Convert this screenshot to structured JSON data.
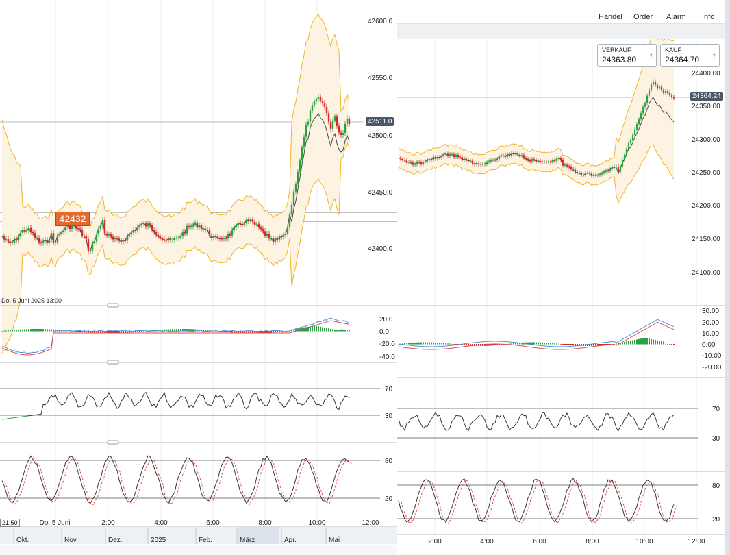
{
  "colors": {
    "up": "#2ea043",
    "down": "#d42a2a",
    "band": "#f0b429",
    "band_fill": "#fdf3e2",
    "ma": "#444444",
    "macd": "#4a90d9",
    "signal": "#e04b4b",
    "rsi_low": "#2ea043",
    "price_tag": "#4a5868",
    "highlight": "#e8692f"
  },
  "left_chart": {
    "price_axis": [
      "42600.0",
      "42550.0",
      "42500.0",
      "42450.0",
      "42400.0"
    ],
    "current_price_tag": "42511.0",
    "highlight_label": "42432",
    "date_caption": "Do. 5 Juni 2025 13:00",
    "macd_axis": [
      "20.0",
      "0.0",
      "-20.0",
      "-40.0"
    ],
    "rsi_axis": [
      "70",
      "30"
    ],
    "stoch_axis": [
      "80",
      "20"
    ],
    "time_axis": [
      "Do. 5 Juni",
      "2:00",
      "4:00",
      "6:00",
      "8:00",
      "10:00",
      "12:00"
    ],
    "time_start_tag": "21:50",
    "navigator_months": [
      "Okt.",
      "Nov.",
      "Dez.",
      "2025",
      "Feb.",
      "März",
      "Apr.",
      "Mai"
    ]
  },
  "right_chart": {
    "toolbar": {
      "buttons": [
        "Handel",
        "Order",
        "Alarm",
        "Info"
      ]
    },
    "sell": {
      "label": "VERKAUF",
      "value": "24363.80",
      "icon": "arrow-up-icon"
    },
    "buy": {
      "label": "KAUF",
      "value": "24364.70",
      "icon": "arrow-up-icon"
    },
    "price_axis": [
      "24400.00",
      "24350.00",
      "24300.00",
      "24250.00",
      "24200.00",
      "24150.00",
      "24100.00"
    ],
    "current_price_tag": "24364.24",
    "macd_axis": [
      "30.00",
      "20.00",
      "10.00",
      "0.00",
      "-10.00",
      "-20.00"
    ],
    "rsi_axis": [
      "70",
      "30"
    ],
    "stoch_axis": [
      "80",
      "20"
    ],
    "time_axis": [
      "2:00",
      "4:00",
      "6:00",
      "8:00",
      "10:00",
      "12:00"
    ]
  }
}
